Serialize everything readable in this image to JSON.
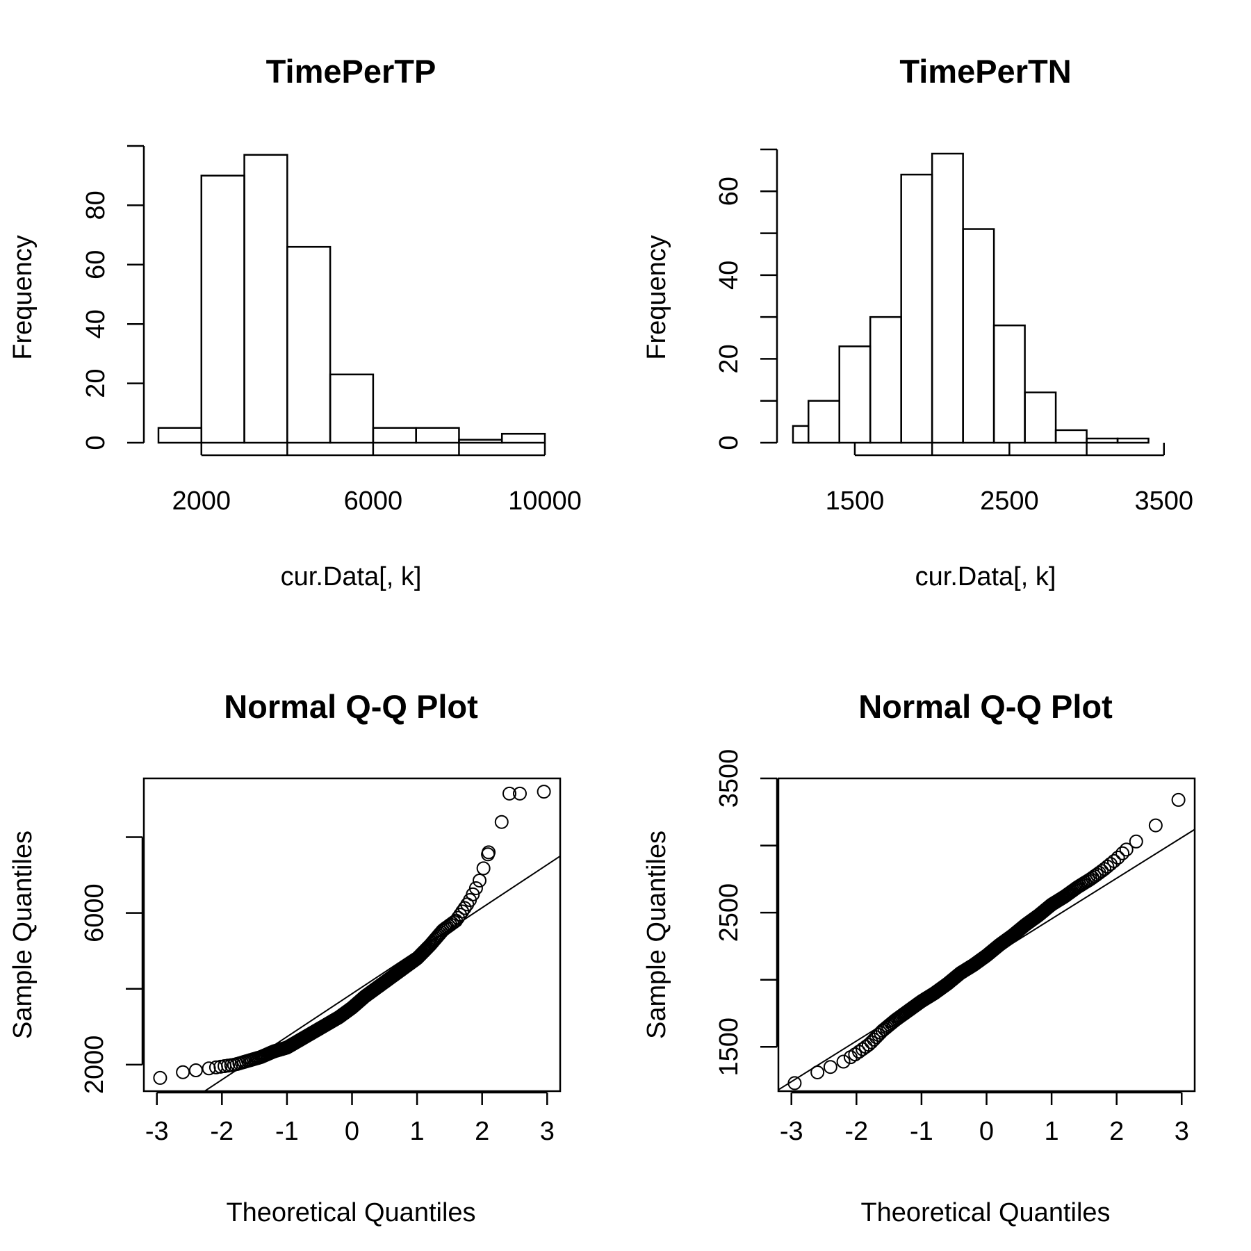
{
  "chart_data": [
    {
      "type": "histogram",
      "title": "TimePerTP",
      "xlabel": "cur.Data[, k]",
      "ylabel": "Frequency",
      "xlim": [
        1000,
        10000
      ],
      "ylim": [
        0,
        100
      ],
      "xticks": [
        2000,
        4000,
        6000,
        8000,
        10000
      ],
      "xtick_labels": [
        "2000",
        "",
        "6000",
        "",
        "10000"
      ],
      "yticks": [
        0,
        20,
        40,
        60,
        80,
        100
      ],
      "ytick_labels": [
        "0",
        "20",
        "40",
        "60",
        "80",
        ""
      ],
      "bins": [
        {
          "x0": 1000,
          "x1": 2000,
          "count": 5
        },
        {
          "x0": 2000,
          "x1": 3000,
          "count": 90
        },
        {
          "x0": 3000,
          "x1": 4000,
          "count": 97
        },
        {
          "x0": 4000,
          "x1": 5000,
          "count": 66
        },
        {
          "x0": 5000,
          "x1": 6000,
          "count": 23
        },
        {
          "x0": 6000,
          "x1": 7000,
          "count": 5
        },
        {
          "x0": 7000,
          "x1": 8000,
          "count": 5
        },
        {
          "x0": 8000,
          "x1": 9000,
          "count": 1
        },
        {
          "x0": 9000,
          "x1": 10000,
          "count": 3
        }
      ]
    },
    {
      "type": "histogram",
      "title": "TimePerTN",
      "xlabel": "cur.Data[, k]",
      "ylabel": "Frequency",
      "xlim": [
        1100,
        3600
      ],
      "ylim": [
        0,
        70
      ],
      "xticks": [
        1500,
        2000,
        2500,
        3000,
        3500
      ],
      "xtick_labels": [
        "1500",
        "",
        "2500",
        "",
        "3500"
      ],
      "yticks": [
        0,
        10,
        20,
        30,
        40,
        50,
        60,
        70
      ],
      "ytick_labels": [
        "0",
        "",
        "20",
        "",
        "40",
        "",
        "60",
        ""
      ],
      "bins": [
        {
          "x0": 1100,
          "x1": 1200,
          "count": 4
        },
        {
          "x0": 1200,
          "x1": 1400,
          "count": 10
        },
        {
          "x0": 1400,
          "x1": 1600,
          "count": 23
        },
        {
          "x0": 1600,
          "x1": 1800,
          "count": 30
        },
        {
          "x0": 1800,
          "x1": 2000,
          "count": 64
        },
        {
          "x0": 2000,
          "x1": 2200,
          "count": 69
        },
        {
          "x0": 2200,
          "x1": 2400,
          "count": 51
        },
        {
          "x0": 2400,
          "x1": 2600,
          "count": 28
        },
        {
          "x0": 2600,
          "x1": 2800,
          "count": 12
        },
        {
          "x0": 2800,
          "x1": 3000,
          "count": 3
        },
        {
          "x0": 3000,
          "x1": 3200,
          "count": 1
        },
        {
          "x0": 3200,
          "x1": 3400,
          "count": 1
        }
      ]
    },
    {
      "type": "scatter",
      "title": "Normal Q-Q Plot",
      "xlabel": "Theoretical Quantiles",
      "ylabel": "Sample Quantiles",
      "xlim": [
        -3.2,
        3.2
      ],
      "ylim": [
        1300,
        9550
      ],
      "xticks": [
        -3,
        -2,
        -1,
        0,
        1,
        2,
        3
      ],
      "xtick_labels": [
        "-3",
        "-2",
        "-1",
        "0",
        "1",
        "2",
        "3"
      ],
      "yticks": [
        2000,
        4000,
        6000,
        8000
      ],
      "ytick_labels": [
        "2000",
        "",
        "6000",
        ""
      ],
      "qq_line": {
        "x0": -3.2,
        "y0": 240,
        "x1": 3.2,
        "y1": 7500
      },
      "quantile_curve": {
        "x": [
          -2.95,
          -2.6,
          -2.4,
          -2.2,
          -2.0,
          -1.8,
          -1.6,
          -1.4,
          -1.2,
          -1.0,
          -0.8,
          -0.6,
          -0.4,
          -0.2,
          0.0,
          0.2,
          0.4,
          0.6,
          0.8,
          1.0,
          1.2,
          1.4,
          1.6,
          1.7,
          1.8,
          1.95,
          2.1,
          2.3,
          2.42,
          2.58,
          2.95
        ],
        "y": [
          1650,
          1800,
          1850,
          1900,
          1950,
          2000,
          2100,
          2200,
          2350,
          2450,
          2650,
          2850,
          3050,
          3250,
          3500,
          3800,
          4050,
          4300,
          4550,
          4800,
          5150,
          5550,
          5800,
          6050,
          6300,
          6800,
          7600,
          8400,
          9150,
          9150,
          9200
        ]
      }
    },
    {
      "type": "scatter",
      "title": "Normal Q-Q Plot",
      "xlabel": "Theoretical Quantiles",
      "ylabel": "Sample Quantiles",
      "xlim": [
        -3.2,
        3.2
      ],
      "ylim": [
        1170,
        3500
      ],
      "xticks": [
        -3,
        -2,
        -1,
        0,
        1,
        2,
        3
      ],
      "xtick_labels": [
        "-3",
        "-2",
        "-1",
        "0",
        "1",
        "2",
        "3"
      ],
      "yticks": [
        1500,
        2000,
        2500,
        3000,
        3500
      ],
      "ytick_labels": [
        "1500",
        "",
        "2500",
        "",
        "3500"
      ],
      "qq_line": {
        "x0": -3.2,
        "y0": 1180,
        "x1": 3.2,
        "y1": 3120
      },
      "quantile_curve": {
        "x": [
          -2.95,
          -2.6,
          -2.4,
          -2.2,
          -2.0,
          -1.8,
          -1.6,
          -1.4,
          -1.2,
          -1.0,
          -0.8,
          -0.6,
          -0.4,
          -0.2,
          0.0,
          0.2,
          0.4,
          0.6,
          0.8,
          1.0,
          1.2,
          1.4,
          1.6,
          1.8,
          2.0,
          2.15,
          2.3,
          2.6,
          2.95
        ],
        "y": [
          1230,
          1310,
          1350,
          1390,
          1450,
          1520,
          1620,
          1700,
          1770,
          1840,
          1900,
          1970,
          2050,
          2110,
          2180,
          2260,
          2330,
          2410,
          2480,
          2560,
          2620,
          2690,
          2750,
          2820,
          2900,
          2970,
          3030,
          3150,
          3340
        ]
      }
    }
  ]
}
